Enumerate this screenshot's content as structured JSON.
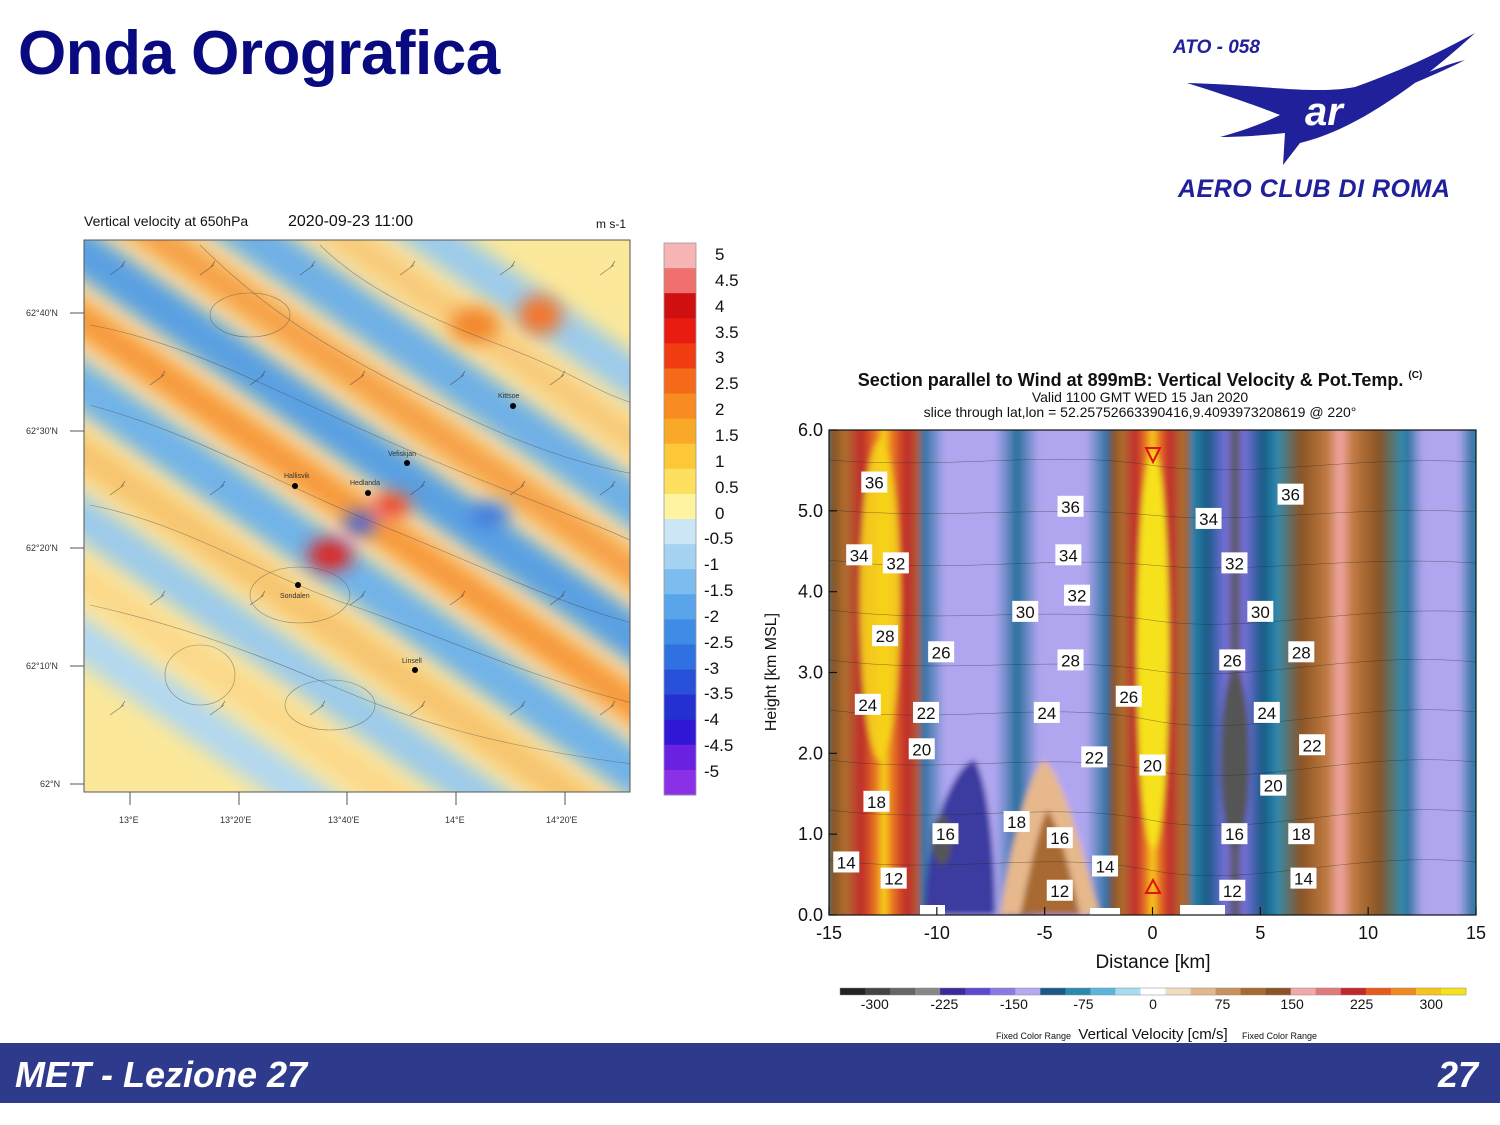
{
  "slide": {
    "title": "Onda Orografica",
    "footer_left": "MET - Lezione 27",
    "footer_right": "27"
  },
  "logo": {
    "code": "ATO - 058",
    "name": "AERO CLUB DI ROMA",
    "color": "#20209a",
    "icon": "eagle-icon"
  },
  "map": {
    "title": "Vertical velocity at 650hPa",
    "datetime": "2020-09-23 11:00",
    "units": "m s-1",
    "lat_labels": [
      "62°40'N",
      "62°30'N",
      "62°20'N",
      "62°10'N",
      "62°N"
    ],
    "lon_labels": [
      "13°E",
      "13°20'E",
      "13°40'E",
      "14°E",
      "14°20'E"
    ],
    "places": [
      "Kittsoe",
      "Vefiskjan",
      "Hallisvik",
      "Hedlanda",
      "Sondalen",
      "Linsell"
    ],
    "colorbar_labels": [
      "5",
      "4.5",
      "4",
      "3.5",
      "3",
      "2.5",
      "2",
      "1.5",
      "1",
      "0.5",
      "0",
      "-0.5",
      "-1",
      "-1.5",
      "-2",
      "-2.5",
      "-3",
      "-3.5",
      "-4",
      "-4.5",
      "-5"
    ]
  },
  "chart_data": {
    "type": "heatmap",
    "title": "Section parallel to Wind at 899mB: Vertical Velocity & Pot.Temp.",
    "title_mark": "(C)",
    "subtitle1": "Valid 1100 GMT WED 15 Jan 2020",
    "subtitle2": "slice through lat,lon = 52.25752663390416,9.4093973208619 @ 220°",
    "xlabel": "Distance [km]",
    "ylabel": "Height [km MSL]",
    "xlim": [
      -15,
      15
    ],
    "ylim": [
      0,
      6
    ],
    "x_ticks": [
      "-15",
      "-10",
      "-5",
      "0",
      "5",
      "10",
      "15"
    ],
    "y_ticks": [
      "0.0",
      "1.0",
      "2.0",
      "3.0",
      "4.0",
      "5.0",
      "6.0"
    ],
    "colorbar_ticks": [
      "-300",
      "-225",
      "-150",
      "-75",
      "0",
      "75",
      "150",
      "225",
      "300"
    ],
    "colorbar_label": "Vertical Velocity [cm/s]",
    "colorbar_note_left": "Fixed Color Range",
    "colorbar_note_right": "Fixed Color Range",
    "contour_labels": [
      {
        "text": "36",
        "x": -12.9,
        "y": 5.35
      },
      {
        "text": "34",
        "x": -13.6,
        "y": 4.45
      },
      {
        "text": "32",
        "x": -11.9,
        "y": 4.35
      },
      {
        "text": "28",
        "x": -12.4,
        "y": 3.45
      },
      {
        "text": "26",
        "x": -9.8,
        "y": 3.25
      },
      {
        "text": "24",
        "x": -13.2,
        "y": 2.6
      },
      {
        "text": "22",
        "x": -10.5,
        "y": 2.5
      },
      {
        "text": "20",
        "x": -10.7,
        "y": 2.05
      },
      {
        "text": "18",
        "x": -12.8,
        "y": 1.4
      },
      {
        "text": "16",
        "x": -9.6,
        "y": 1.0
      },
      {
        "text": "14",
        "x": -14.2,
        "y": 0.65
      },
      {
        "text": "12",
        "x": -12.0,
        "y": 0.45
      },
      {
        "text": "36",
        "x": -3.8,
        "y": 5.05
      },
      {
        "text": "34",
        "x": -3.9,
        "y": 4.45
      },
      {
        "text": "32",
        "x": -3.5,
        "y": 3.95
      },
      {
        "text": "30",
        "x": -5.9,
        "y": 3.75
      },
      {
        "text": "28",
        "x": -3.8,
        "y": 3.15
      },
      {
        "text": "24",
        "x": -4.9,
        "y": 2.5
      },
      {
        "text": "22",
        "x": -2.7,
        "y": 1.95
      },
      {
        "text": "18",
        "x": -6.3,
        "y": 1.15
      },
      {
        "text": "16",
        "x": -4.3,
        "y": 0.95
      },
      {
        "text": "14",
        "x": -2.2,
        "y": 0.6
      },
      {
        "text": "12",
        "x": -4.3,
        "y": 0.3
      },
      {
        "text": "26",
        "x": -1.1,
        "y": 2.7
      },
      {
        "text": "20",
        "x": 0.0,
        "y": 1.85
      },
      {
        "text": "36",
        "x": 6.4,
        "y": 5.2
      },
      {
        "text": "34",
        "x": 2.6,
        "y": 4.9
      },
      {
        "text": "32",
        "x": 3.8,
        "y": 4.35
      },
      {
        "text": "30",
        "x": 5.0,
        "y": 3.75
      },
      {
        "text": "28",
        "x": 6.9,
        "y": 3.25
      },
      {
        "text": "26",
        "x": 3.7,
        "y": 3.15
      },
      {
        "text": "24",
        "x": 5.3,
        "y": 2.5
      },
      {
        "text": "22",
        "x": 7.4,
        "y": 2.1
      },
      {
        "text": "20",
        "x": 5.6,
        "y": 1.6
      },
      {
        "text": "18",
        "x": 6.9,
        "y": 1.0
      },
      {
        "text": "16",
        "x": 3.8,
        "y": 1.0
      },
      {
        "text": "14",
        "x": 7.0,
        "y": 0.45
      },
      {
        "text": "12",
        "x": 3.7,
        "y": 0.3
      }
    ]
  }
}
